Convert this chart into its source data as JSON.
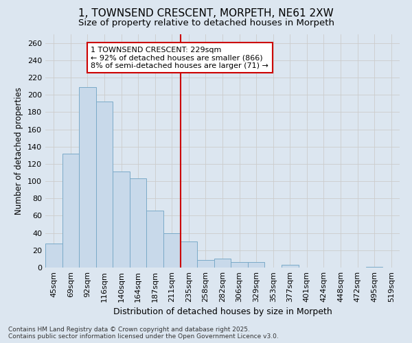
{
  "title": "1, TOWNSEND CRESCENT, MORPETH, NE61 2XW",
  "subtitle": "Size of property relative to detached houses in Morpeth",
  "xlabel": "Distribution of detached houses by size in Morpeth",
  "ylabel": "Number of detached properties",
  "categories": [
    "45sqm",
    "69sqm",
    "92sqm",
    "116sqm",
    "140sqm",
    "164sqm",
    "187sqm",
    "211sqm",
    "235sqm",
    "258sqm",
    "282sqm",
    "306sqm",
    "329sqm",
    "353sqm",
    "377sqm",
    "401sqm",
    "424sqm",
    "448sqm",
    "472sqm",
    "495sqm",
    "519sqm"
  ],
  "values": [
    28,
    132,
    209,
    192,
    111,
    103,
    66,
    40,
    30,
    9,
    10,
    6,
    6,
    0,
    3,
    0,
    0,
    0,
    0,
    1,
    0
  ],
  "bar_color": "#c8d9ea",
  "bar_edge_color": "#7aaac8",
  "vline_color": "#cc0000",
  "vline_x": 8.0,
  "annotation_text": "1 TOWNSEND CRESCENT: 229sqm\n← 92% of detached houses are smaller (866)\n8% of semi-detached houses are larger (71) →",
  "annotation_box_facecolor": "#ffffff",
  "annotation_box_edgecolor": "#cc0000",
  "ylim": [
    0,
    270
  ],
  "yticks": [
    0,
    20,
    40,
    60,
    80,
    100,
    120,
    140,
    160,
    180,
    200,
    220,
    240,
    260
  ],
  "grid_color": "#cccccc",
  "background_color": "#dce6f0",
  "title_fontsize": 11,
  "subtitle_fontsize": 9.5,
  "ylabel_fontsize": 8.5,
  "xlabel_fontsize": 9,
  "tick_fontsize": 8,
  "annotation_fontsize": 8,
  "footer_fontsize": 6.5,
  "footer_text": "Contains HM Land Registry data © Crown copyright and database right 2025.\nContains public sector information licensed under the Open Government Licence v3.0."
}
